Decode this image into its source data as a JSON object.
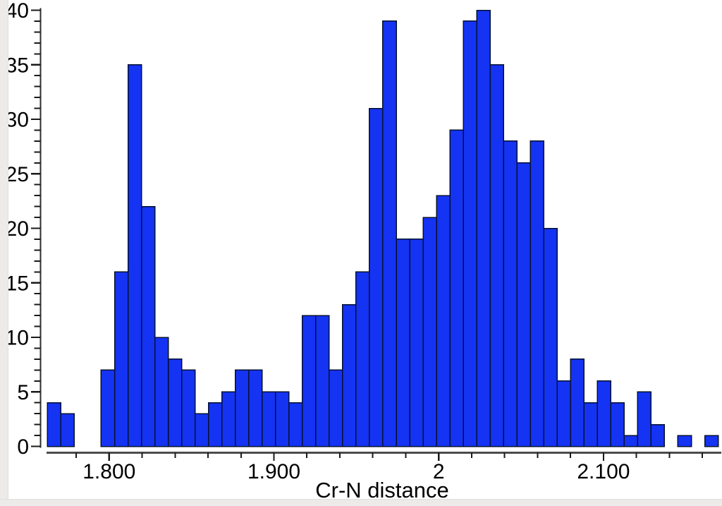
{
  "figure": {
    "background_color": "#ffffff",
    "margin_strip_color": "#ecebe9"
  },
  "chart_data": {
    "type": "bar",
    "subtype": "histogram",
    "title": "",
    "xlabel": "Cr-N distance",
    "ylabel": "",
    "bin_start": 1.7626,
    "bin_width": 0.00814,
    "counts": [
      4,
      3,
      0,
      0,
      7,
      16,
      35,
      22,
      10,
      8,
      7,
      3,
      4,
      5,
      7,
      7,
      5,
      5,
      4,
      12,
      12,
      7,
      13,
      16,
      31,
      39,
      19,
      19,
      21,
      23,
      29,
      39,
      40,
      35,
      28,
      26,
      28,
      20,
      6,
      8,
      4,
      6,
      4,
      1,
      5,
      2,
      0,
      1,
      0,
      1
    ],
    "total_count": 647,
    "xlim": [
      1.7626,
      2.1697
    ],
    "ylim": [
      0,
      40
    ],
    "x_major_ticks": [
      {
        "value": 1.8,
        "label": "1.800"
      },
      {
        "value": 1.9,
        "label": "1.900"
      },
      {
        "value": 2.0,
        "label": "2"
      },
      {
        "value": 2.1,
        "label": "2.100"
      }
    ],
    "x_minor_tick_start": 1.78,
    "x_minor_tick_end": 2.16,
    "x_minor_tick_step": 0.02,
    "y_major_ticks": [
      {
        "value": 0,
        "label": "0"
      },
      {
        "value": 5,
        "label": "5"
      },
      {
        "value": 10,
        "label": "10"
      },
      {
        "value": 15,
        "label": "15"
      },
      {
        "value": 20,
        "label": "20"
      },
      {
        "value": 25,
        "label": "25"
      },
      {
        "value": 30,
        "label": "30"
      },
      {
        "value": 35,
        "label": "35"
      },
      {
        "value": 40,
        "label": "40"
      }
    ],
    "y_minor_tick_step": 1,
    "grid": false,
    "legend": null,
    "colors": {
      "bar_fill": "#1533f2",
      "bar_stroke": "#041030",
      "x_axis_line": "#4c4c4c",
      "y_axis_line": "#2d2d2d",
      "tick": "#1a1a1a",
      "text": "#000000"
    }
  }
}
